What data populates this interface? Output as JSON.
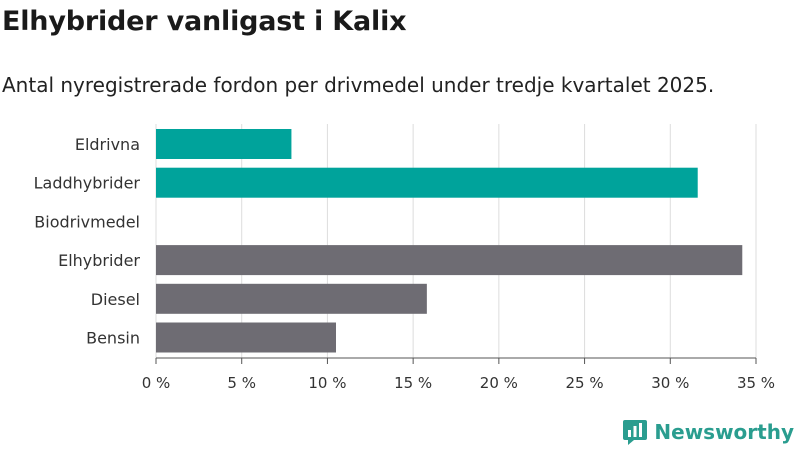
{
  "chart_data": {
    "type": "bar",
    "orientation": "horizontal",
    "title": "Elhybrider vanligast i Kalix",
    "subtitle": "Antal nyregistrerade fordon per drivmedel under tredje kvartalet 2025.",
    "categories": [
      "Eldrivna",
      "Laddhybrider",
      "Biodrivmedel",
      "Elhybrider",
      "Diesel",
      "Bensin"
    ],
    "values": [
      7.9,
      31.6,
      0,
      34.2,
      15.8,
      10.5
    ],
    "bar_colors": [
      "#00a39b",
      "#00a39b",
      "#00a39b",
      "#6e6c73",
      "#6e6c73",
      "#6e6c73"
    ],
    "xlim": [
      0,
      35
    ],
    "xticks": [
      0,
      5,
      10,
      15,
      20,
      25,
      30,
      35
    ],
    "xtick_labels": [
      "0 %",
      "5 %",
      "10 %",
      "15 %",
      "20 %",
      "25 %",
      "30 %",
      "35 %"
    ],
    "grid": true,
    "grid_color": "#dddddd"
  },
  "branding": {
    "name": "Newsworthy",
    "color": "#2a9d8f",
    "icon": "newsworthy-logo-icon"
  }
}
